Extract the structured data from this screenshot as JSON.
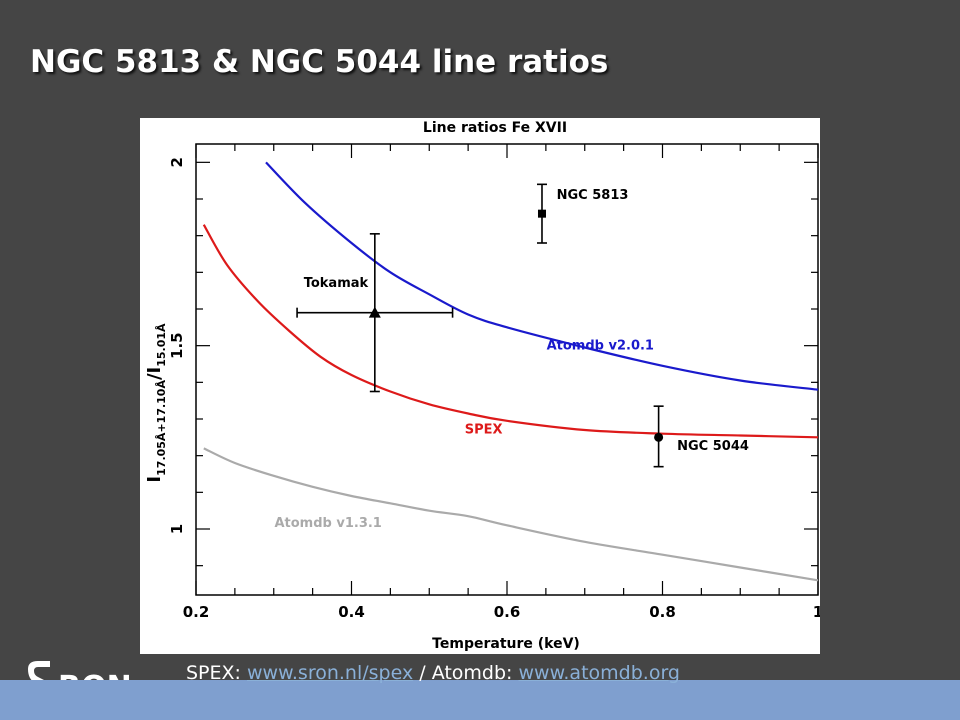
{
  "slide": {
    "title": "NGC 5813 & NGC 5044 line ratios"
  },
  "footer": {
    "spex_label": "SPEX:",
    "spex_link": "www.sron.nl/spex",
    "separator": " / Atomdb:",
    "atomdb_link": "www.atomdb.org"
  },
  "logo": {
    "text": "SRON",
    "color": "#ffffff"
  },
  "colors": {
    "background": "#454545",
    "bottom_bar": "#7f9fcf",
    "atomdb_v2": "#1a1acc",
    "spex": "#dd1a1a",
    "atomdb_v1": "#aaaaaa",
    "points": "#000000"
  },
  "chart_data": {
    "type": "line",
    "title": "Line ratios Fe XVII",
    "xlabel": "Temperature (keV)",
    "ylabel": "I17.05Å+17.10Å/I15.01Å",
    "ylabel_parts": {
      "i1": "I",
      "sub1": "17.05Å+17.10Å",
      "slash": "/",
      "i2": "I",
      "sub2": "15.01Å"
    },
    "xlim": [
      0.2,
      1.0
    ],
    "ylim": [
      0.82,
      2.05
    ],
    "xticks": [
      {
        "value": 0.2,
        "label": "0.2"
      },
      {
        "value": 0.4,
        "label": "0.4"
      },
      {
        "value": 0.6,
        "label": "0.6"
      },
      {
        "value": 0.8,
        "label": "0.8"
      },
      {
        "value": 1.0,
        "label": "1"
      }
    ],
    "yticks": [
      {
        "value": 1.0,
        "label": "1"
      },
      {
        "value": 1.5,
        "label": "1.5"
      },
      {
        "value": 2.0,
        "label": "2"
      }
    ],
    "series": [
      {
        "name": "Atomdb v2.0.1",
        "color": "#1a1acc",
        "x": [
          0.29,
          0.34,
          0.4,
          0.45,
          0.5,
          0.55,
          0.6,
          0.7,
          0.8,
          0.9,
          1.0
        ],
        "y": [
          2.0,
          1.89,
          1.78,
          1.7,
          1.64,
          1.585,
          1.55,
          1.495,
          1.445,
          1.405,
          1.38
        ]
      },
      {
        "name": "SPEX",
        "color": "#dd1a1a",
        "x": [
          0.21,
          0.24,
          0.28,
          0.32,
          0.36,
          0.4,
          0.45,
          0.5,
          0.55,
          0.6,
          0.7,
          0.8,
          0.9,
          1.0
        ],
        "y": [
          1.83,
          1.72,
          1.62,
          1.54,
          1.47,
          1.42,
          1.375,
          1.34,
          1.315,
          1.295,
          1.27,
          1.26,
          1.255,
          1.25
        ]
      },
      {
        "name": "Atomdb v1.3.1",
        "color": "#aaaaaa",
        "x": [
          0.21,
          0.25,
          0.3,
          0.35,
          0.4,
          0.45,
          0.5,
          0.55,
          0.6,
          0.7,
          0.8,
          0.9,
          1.0
        ],
        "y": [
          1.22,
          1.18,
          1.145,
          1.115,
          1.09,
          1.07,
          1.05,
          1.035,
          1.01,
          0.965,
          0.93,
          0.895,
          0.86
        ]
      }
    ],
    "points": [
      {
        "name": "Tokamak",
        "marker": "triangle",
        "x": 0.43,
        "y": 1.59,
        "xerr": [
          0.33,
          0.53
        ],
        "yerr": [
          1.375,
          1.805
        ]
      },
      {
        "name": "NGC 5813",
        "marker": "square",
        "x": 0.645,
        "y": 1.86,
        "xerr": null,
        "yerr": [
          1.78,
          1.94
        ]
      },
      {
        "name": "NGC 5044",
        "marker": "circle",
        "x": 0.795,
        "y": 1.25,
        "xerr": null,
        "yerr": [
          1.17,
          1.335
        ]
      }
    ],
    "annotations": [
      {
        "text": "Atomdb v2.0.1",
        "x": 0.72,
        "y": 1.49,
        "color": "#1a1acc"
      },
      {
        "text": "SPEX",
        "x": 0.57,
        "y": 1.26,
        "color": "#dd1a1a"
      },
      {
        "text": "Atomdb v1.3.1",
        "x": 0.37,
        "y": 1.005,
        "color": "#aaaaaa"
      },
      {
        "text": "Tokamak",
        "x": 0.38,
        "y": 1.66,
        "color": "#000000"
      },
      {
        "text": "NGC 5813",
        "x": 0.71,
        "y": 1.9,
        "color": "#000000"
      },
      {
        "text": "NGC 5044",
        "x": 0.865,
        "y": 1.215,
        "color": "#000000"
      }
    ],
    "grid": false
  }
}
